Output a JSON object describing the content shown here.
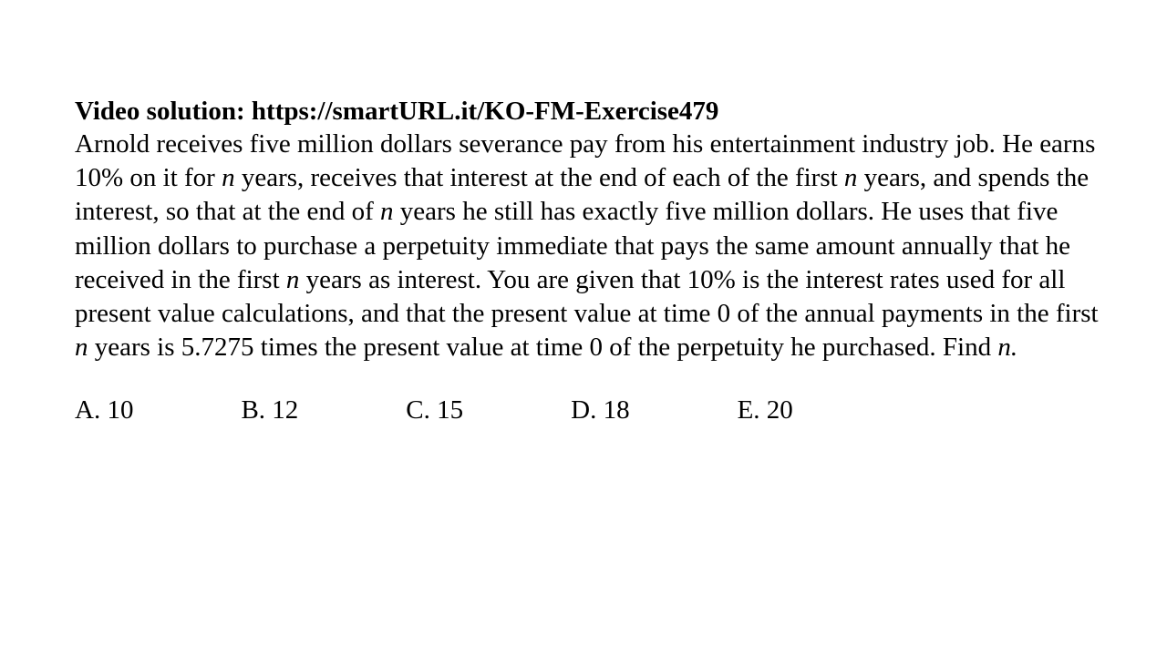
{
  "heading": {
    "prefix": "Video solution: ",
    "url": "https://smartURL.it/KO-FM-Exercise479"
  },
  "problem": {
    "s1": "Arnold receives five million dollars severance pay from his entertainment industry job. He earns 10% on it for ",
    "n1": "n",
    "s2": " years, receives that interest at the end of each of the first ",
    "n2": "n",
    "s3": " years, and spends the interest, so that at the end of ",
    "n3": "n",
    "s4": " years he still has exactly five million dollars. He uses that five million dollars to purchase a perpetuity immediate that pays the same amount annually that he received in the first ",
    "n4": "n",
    "s5": " years as interest. You are given that 10% is the interest rates used for all present value calculations, and that the present value at time 0 of the annual payments in the first ",
    "n5": "n",
    "s6": " years is 5.7275 times the present value at time 0 of the perpetuity he purchased. Find ",
    "n6": "n.",
    "s7": ""
  },
  "choices": {
    "a": "A. 10",
    "b": "B. 12",
    "c": "C. 15",
    "d": "D. 18",
    "e": "E. 20"
  },
  "style": {
    "background": "#ffffff",
    "text_color": "#000000",
    "font_family": "Times New Roman",
    "heading_fontsize": 29,
    "body_fontsize": 29,
    "choice_fontsize": 29
  }
}
